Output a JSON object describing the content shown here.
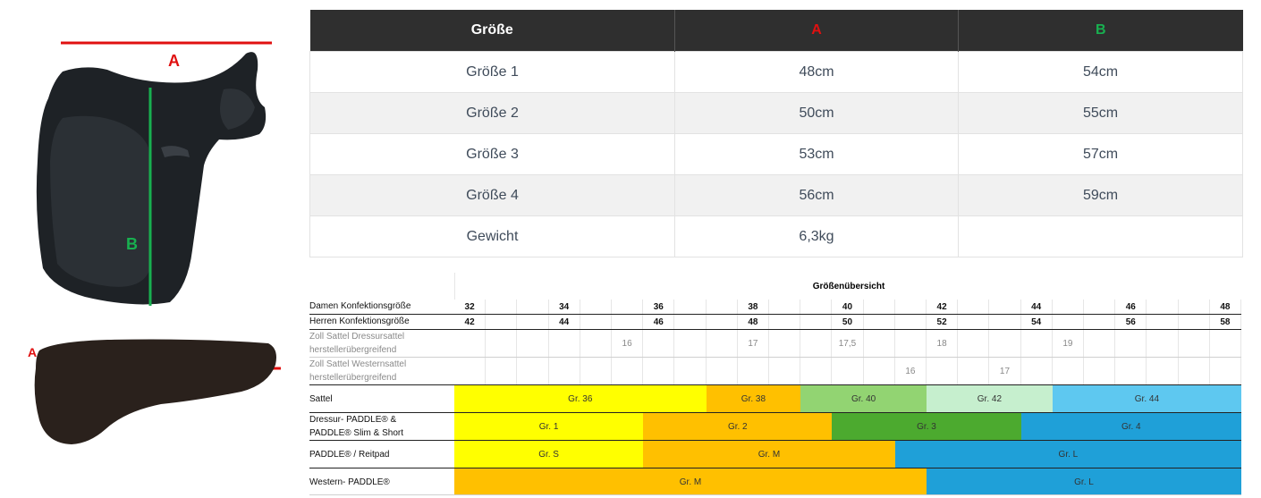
{
  "labels": {
    "a_top": "A",
    "b_mid": "B",
    "a_pad": "A"
  },
  "colors": {
    "red": "#e01010",
    "green": "#18b050",
    "header_bg": "#2f2f2f",
    "yellow": "#ffff00",
    "orange": "#ffc000",
    "light_green": "#92d472",
    "pale_green": "#c6efce",
    "light_blue": "#5ec8f0",
    "blue": "#1fa0d8",
    "dark_green": "#4caa2f"
  },
  "size_table": {
    "headers": [
      "Größe",
      "A",
      "B"
    ],
    "rows": [
      [
        "Größe 1",
        "48cm",
        "54cm"
      ],
      [
        "Größe 2",
        "50cm",
        "55cm"
      ],
      [
        "Größe 3",
        "53cm",
        "57cm"
      ],
      [
        "Größe 4",
        "56cm",
        "59cm"
      ],
      [
        "Gewicht",
        "6,3kg",
        ""
      ]
    ]
  },
  "overview": {
    "title": "Größenübersicht",
    "damen_label": "Damen Konfektionsgröße",
    "herren_label": "Herren Konfektionsgröße",
    "zoll_dressur_label_1": "Zoll Sattel Dressursattel",
    "zoll_dressur_label_2": "herstellerübergreifend",
    "zoll_western_label_1": "Zoll Sattel Westernsattel",
    "zoll_western_label_2": "herstellerübergreifend",
    "sattel_label": "Sattel",
    "dressur_label_1": "Dressur- PADDLE® &",
    "dressur_label_2": "PADDLE® Slim & Short",
    "reitpad_label": " PADDLE® / Reitpad",
    "western_label": "Western- PADDLE®",
    "damen": [
      "32",
      "",
      "",
      "34",
      "",
      "",
      "36",
      "",
      "",
      "38",
      "",
      "",
      "40",
      "",
      "",
      "42",
      "",
      "",
      "44",
      "",
      "",
      "46",
      "",
      "",
      "48"
    ],
    "herren": [
      "42",
      "",
      "",
      "44",
      "",
      "",
      "46",
      "",
      "",
      "48",
      "",
      "",
      "50",
      "",
      "",
      "52",
      "",
      "",
      "54",
      "",
      "",
      "56",
      "",
      "",
      "58"
    ],
    "zoll_dressur": [
      "",
      "",
      "",
      "",
      "",
      "16",
      "",
      "",
      "",
      "17",
      "",
      "",
      "17,5",
      "",
      "",
      "18",
      "",
      "",
      "",
      "19",
      "",
      "",
      "",
      "",
      ""
    ],
    "zoll_western": [
      "",
      "",
      "",
      "",
      "",
      "",
      "",
      "",
      "",
      "",
      "",
      "",
      "",
      "",
      "16",
      "",
      "",
      "17",
      "",
      "",
      "",
      "",
      "",
      "",
      ""
    ],
    "sattel": [
      {
        "label": "Gr. 36",
        "start": 0,
        "span": 8,
        "color": "#ffff00"
      },
      {
        "label": "Gr. 38",
        "start": 8,
        "span": 3,
        "color": "#ffc000"
      },
      {
        "label": "Gr. 40",
        "start": 11,
        "span": 4,
        "color": "#92d472"
      },
      {
        "label": "Gr. 42",
        "start": 15,
        "span": 4,
        "color": "#c6efce"
      },
      {
        "label": "Gr. 44",
        "start": 19,
        "span": 6,
        "color": "#5ec8f0"
      }
    ],
    "dressur": [
      {
        "label": "Gr. 1",
        "start": 0,
        "span": 6,
        "color": "#ffff00"
      },
      {
        "label": "Gr. 2",
        "start": 6,
        "span": 6,
        "color": "#ffc000"
      },
      {
        "label": "Gr. 3",
        "start": 12,
        "span": 6,
        "color": "#4caa2f"
      },
      {
        "label": "Gr. 4",
        "start": 18,
        "span": 7,
        "color": "#1fa0d8"
      }
    ],
    "reitpad": [
      {
        "label": "Gr. S",
        "start": 0,
        "span": 6,
        "color": "#ffff00"
      },
      {
        "label": "Gr. M",
        "start": 6,
        "span": 8,
        "color": "#ffc000"
      },
      {
        "label": "Gr. L",
        "start": 14,
        "span": 11,
        "color": "#1fa0d8"
      }
    ],
    "western": [
      {
        "label": "Gr. M",
        "start": 0,
        "span": 15,
        "color": "#ffc000"
      },
      {
        "label": "Gr. L",
        "start": 15,
        "span": 10,
        "color": "#1fa0d8"
      }
    ]
  }
}
